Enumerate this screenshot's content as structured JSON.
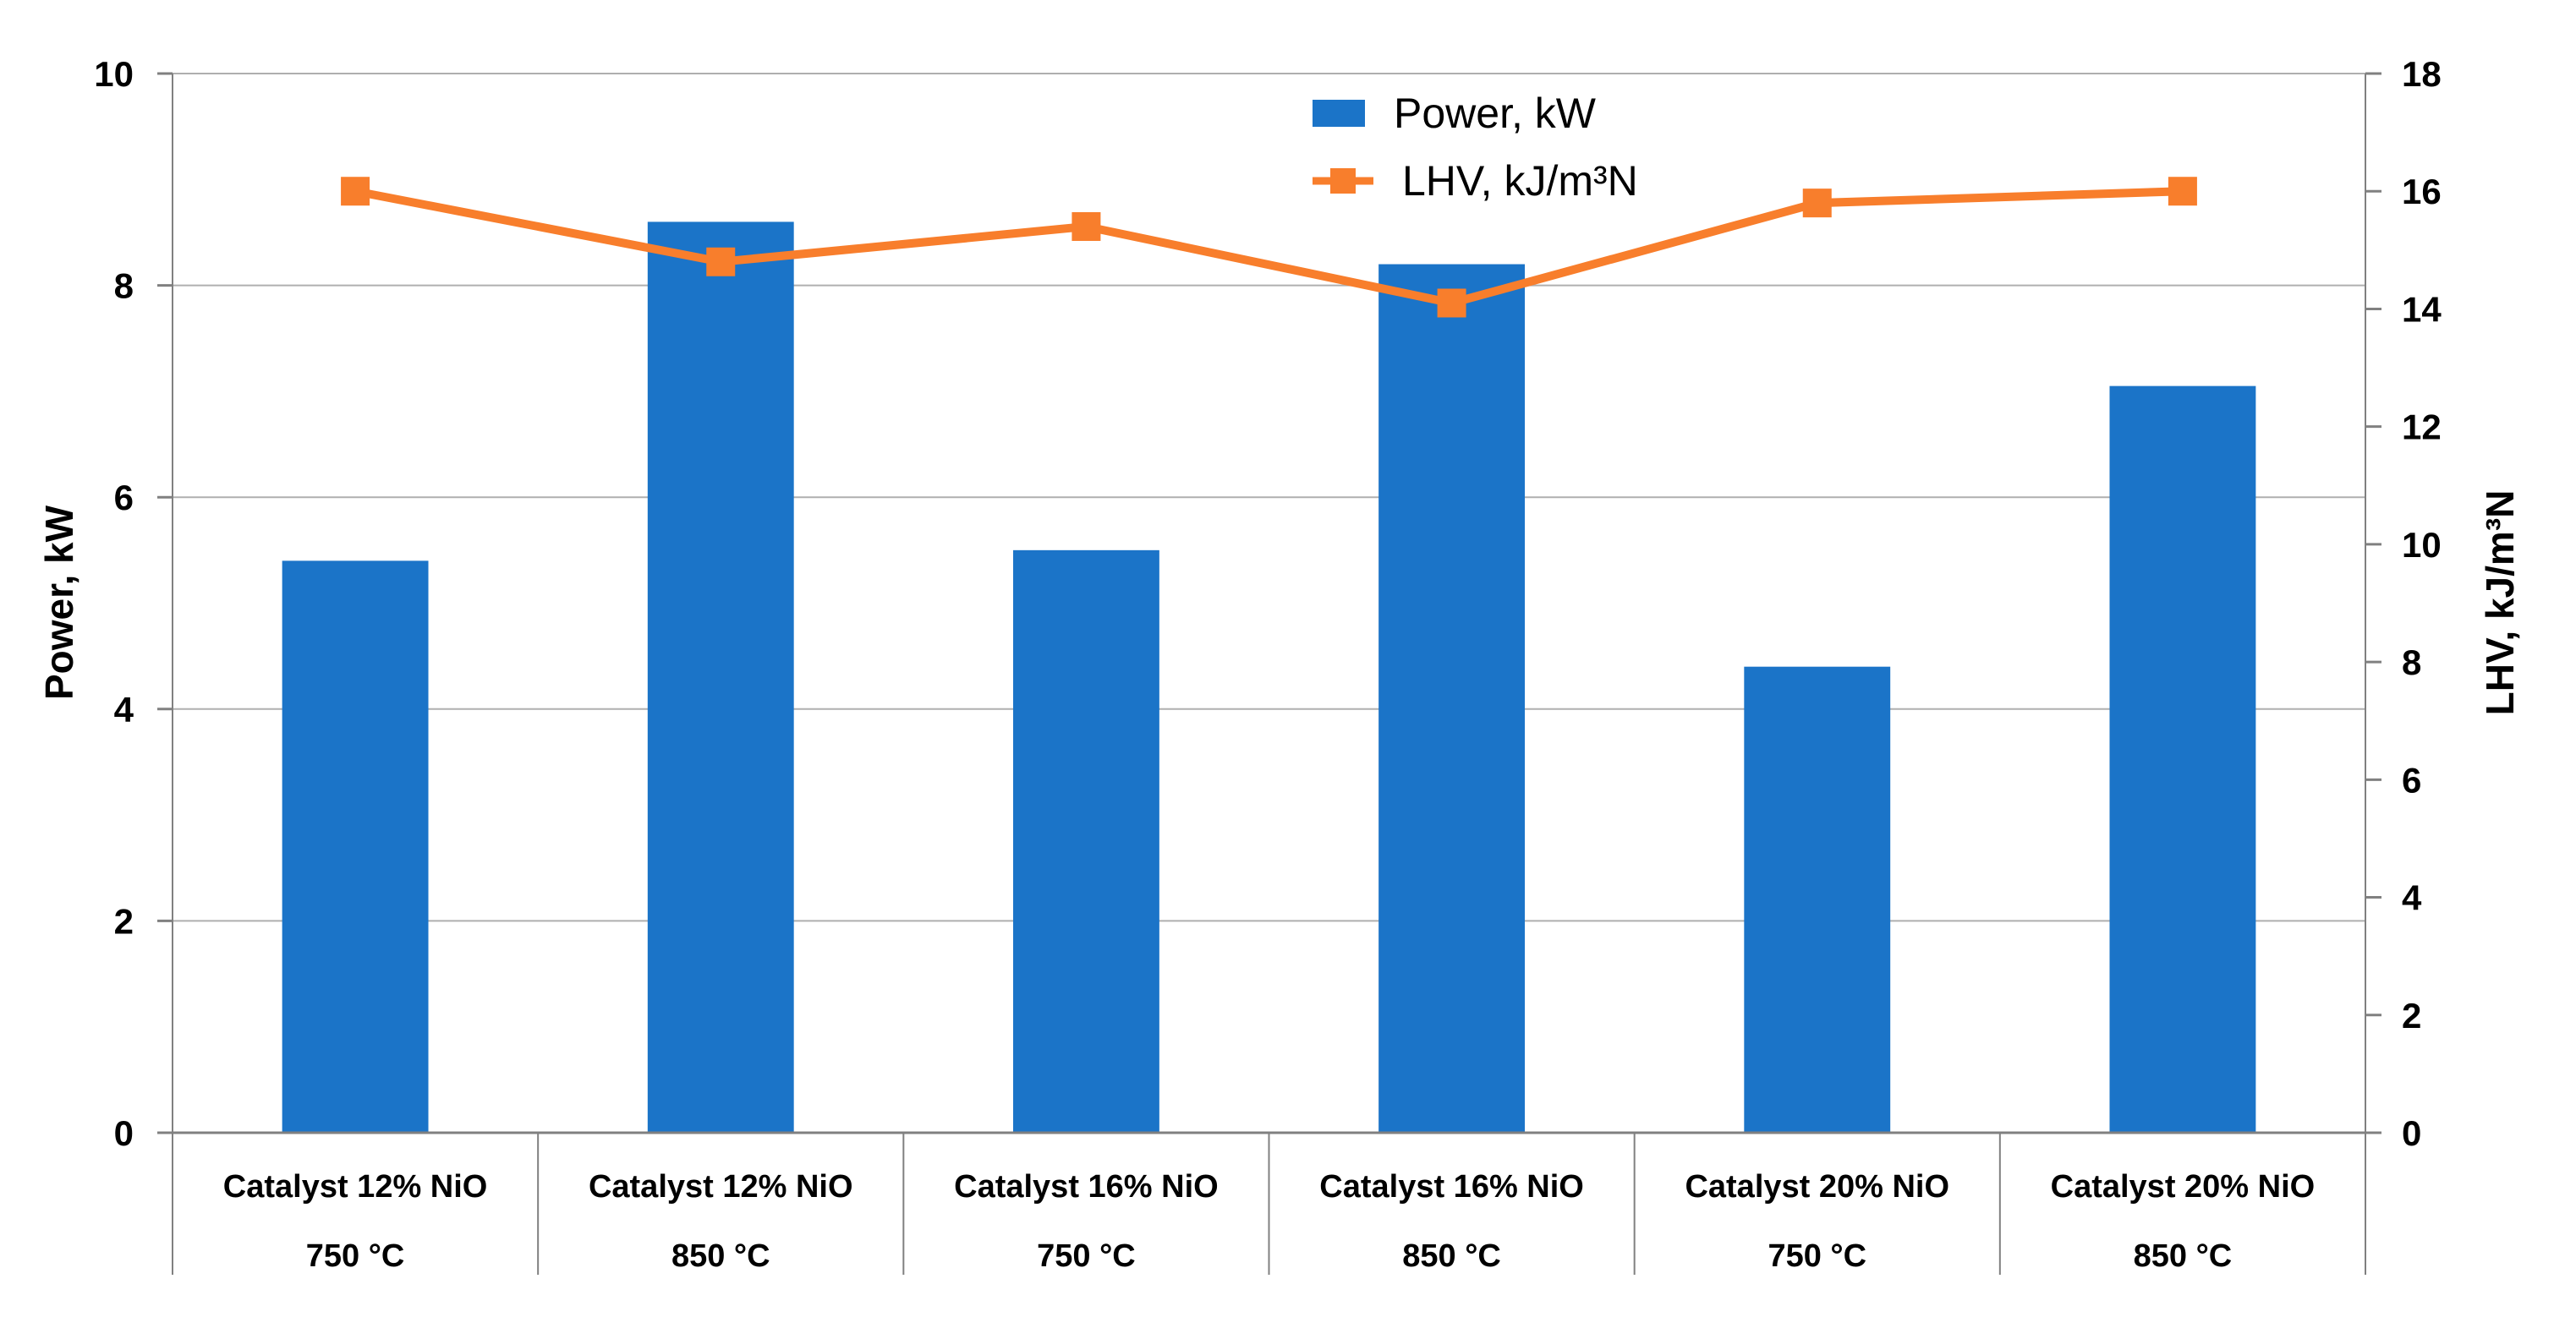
{
  "chart_data": {
    "type": "combo-bar-line",
    "title": "",
    "categories": [
      {
        "label": "Catalyst 12% NiO",
        "sublabel": "750 °C"
      },
      {
        "label": "Catalyst 12% NiO",
        "sublabel": "850 °C"
      },
      {
        "label": "Catalyst 16% NiO",
        "sublabel": "750 °C"
      },
      {
        "label": "Catalyst 16% NiO",
        "sublabel": "850 °C"
      },
      {
        "label": "Catalyst 20% NiO",
        "sublabel": "750 °C"
      },
      {
        "label": "Catalyst 20% NiO",
        "sublabel": "850 °C"
      }
    ],
    "series": [
      {
        "name": "Power, kW",
        "type": "bar",
        "axis": "left",
        "color": "#1B74C8",
        "values": [
          5.4,
          8.6,
          5.5,
          8.2,
          4.4,
          7.05
        ]
      },
      {
        "name": "LHV, kJ/m³N",
        "type": "line",
        "axis": "right",
        "color": "#F87E2C",
        "marker": "square",
        "values": [
          16.0,
          14.8,
          15.4,
          14.1,
          15.8,
          16.0
        ]
      }
    ],
    "left_axis": {
      "title": "Power, kW",
      "min": 0,
      "max": 10,
      "tick_step": 2,
      "tick_labels": [
        "0",
        "2",
        "4",
        "6",
        "8",
        "10"
      ]
    },
    "right_axis": {
      "title": "LHV, kJ/m³N",
      "min": 0,
      "max": 18,
      "tick_step": 2,
      "tick_labels": [
        "0",
        "2",
        "4",
        "6",
        "8",
        "10",
        "12",
        "14",
        "16",
        "18"
      ]
    },
    "legend": {
      "position": "top-center-right",
      "entries": [
        "Power, kW",
        "LHV, kJ/m³N"
      ]
    },
    "grid": true,
    "colors": {
      "bar": "#1B74C8",
      "line": "#F87E2C",
      "gridline": "#AFAFAF",
      "axis": "#808080",
      "text": "#000000",
      "background": "#FFFFFF"
    }
  }
}
